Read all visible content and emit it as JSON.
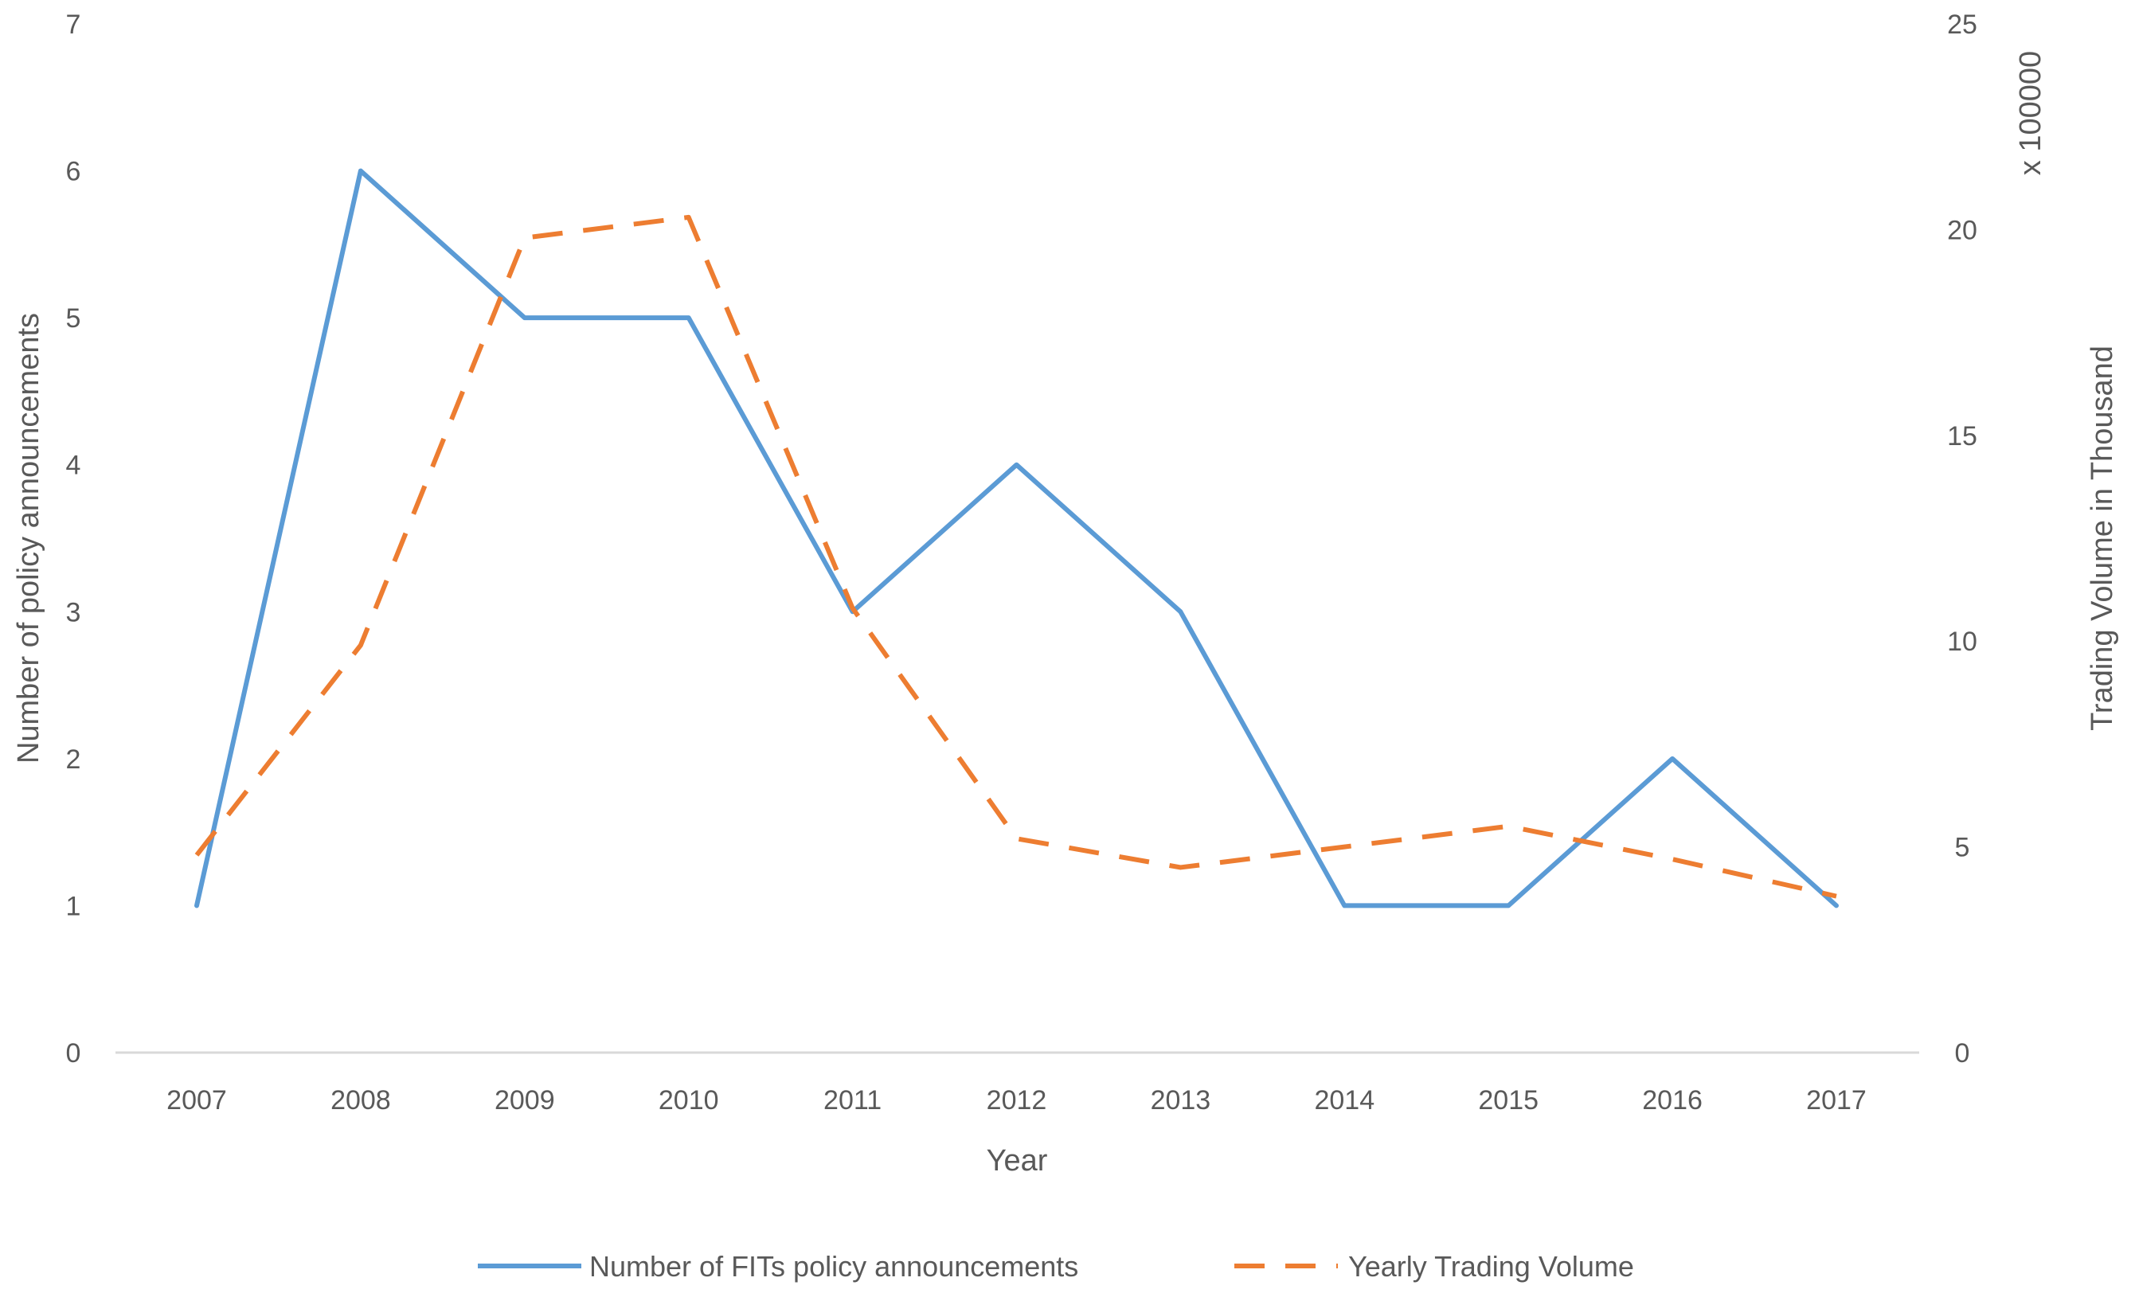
{
  "chart_data": {
    "type": "line",
    "categories": [
      "2007",
      "2008",
      "2009",
      "2010",
      "2011",
      "2012",
      "2013",
      "2014",
      "2015",
      "2016",
      "2017"
    ],
    "xlabel": "Year",
    "ylabel_left": "Number of policy announcements",
    "ylabel_right": "Trading Volume in Thousand",
    "right_axis_multiplier": "x 100000",
    "ylim_left": [
      0,
      7
    ],
    "ylim_right": [
      0,
      25
    ],
    "yticks_left": [
      "0",
      "1",
      "2",
      "3",
      "4",
      "5",
      "6",
      "7"
    ],
    "yticks_right": [
      "0",
      "5",
      "10",
      "15",
      "20",
      "25"
    ],
    "legend_position": "bottom",
    "grid": false,
    "series": [
      {
        "name": "Number of FITs policy announcements",
        "axis": "left",
        "style": "solid",
        "color": "#5B9BD5",
        "values": [
          1,
          6,
          5,
          5,
          3,
          4,
          3,
          1,
          1,
          2,
          1
        ]
      },
      {
        "name": "Yearly Trading Volume",
        "axis": "right",
        "style": "dashed",
        "color": "#ED7D31",
        "values": [
          4.8,
          9.9,
          19.8,
          20.3,
          10.8,
          5.2,
          4.5,
          5.0,
          5.5,
          4.7,
          3.8
        ]
      }
    ]
  }
}
